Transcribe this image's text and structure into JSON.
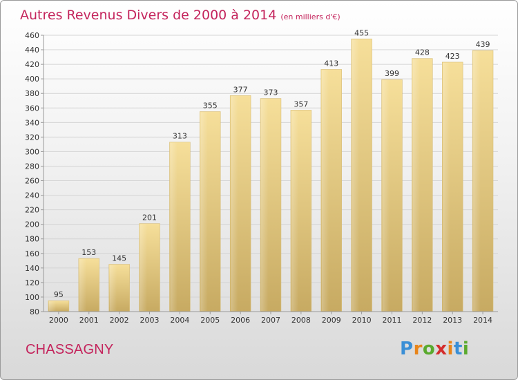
{
  "header": {
    "title": "Autres Revenus Divers de 2000 à 2014",
    "unit": "(en milliers d'€)"
  },
  "footer": {
    "commune": "CHASSAGNY",
    "brand_letters": [
      "P",
      "r",
      "o",
      "x",
      "i",
      "t",
      "i"
    ],
    "brand_colors": [
      "#3a8fd6",
      "#e8851a",
      "#5aaa2e",
      "#d42d2d",
      "#e8851a",
      "#3a8fd6",
      "#5aaa2e"
    ]
  },
  "colors": {
    "bar": "#e8d08c",
    "bar_dark": "#c9ab62",
    "grid": "#d4d4d4",
    "title": "#c4245c"
  },
  "chart_data": {
    "type": "bar",
    "categories": [
      "2000",
      "2001",
      "2002",
      "2003",
      "2004",
      "2005",
      "2006",
      "2007",
      "2008",
      "2009",
      "2010",
      "2011",
      "2012",
      "2013",
      "2014"
    ],
    "values": [
      95,
      153,
      145,
      201,
      313,
      355,
      377,
      373,
      357,
      413,
      455,
      399,
      428,
      423,
      439
    ],
    "yticks": [
      80,
      100,
      120,
      140,
      160,
      180,
      200,
      220,
      240,
      260,
      280,
      300,
      320,
      340,
      360,
      380,
      400,
      420,
      440,
      460
    ],
    "ylim": [
      80,
      460
    ],
    "grid": true
  }
}
